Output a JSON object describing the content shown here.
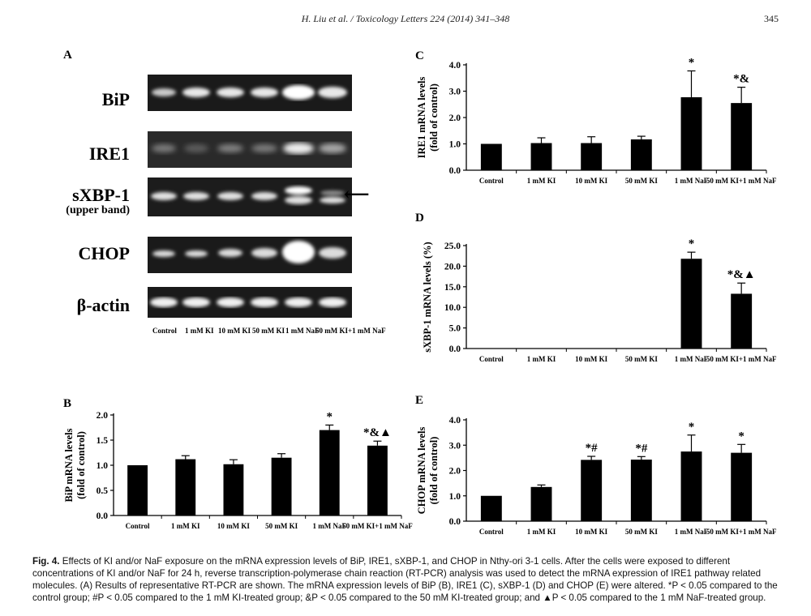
{
  "header": {
    "journal_ref": "H. Liu et al. / Toxicology Letters 224 (2014) 341–348",
    "page_number": "345"
  },
  "panel_a": {
    "letter": "A",
    "genes": [
      "BiP",
      "IRE1",
      "sXBP-1",
      "CHOP",
      "β-actin"
    ],
    "sxbp_subtitle": "(upper band)",
    "lanes": [
      "Control",
      "1 mM KI",
      "10 mM KI",
      "50 mM KI",
      "1 mM NaF",
      "50 mM KI+1 mM NaF"
    ],
    "arrow": "⟵"
  },
  "chart_data": [
    {
      "panel": "B",
      "type": "bar",
      "categories": [
        "Control",
        "1 mM KI",
        "10 mM KI",
        "50 mM KI",
        "1 mM NaF",
        "50 mM KI+1 mM NaF"
      ],
      "values": [
        1.0,
        1.12,
        1.02,
        1.15,
        1.7,
        1.39
      ],
      "errors": [
        0.0,
        0.07,
        0.09,
        0.08,
        0.1,
        0.09
      ],
      "annotations": [
        "",
        "",
        "",
        "",
        "*",
        "*&▲"
      ],
      "ylabel": "BiP mRNA levels (fold of control)",
      "ylabel_lines": [
        "BiP mRNA levels",
        "(fold of control)"
      ],
      "yticks": [
        "0.0",
        "0.5",
        "1.0",
        "1.5",
        "2.0"
      ],
      "ylim": [
        0,
        2.0
      ]
    },
    {
      "panel": "C",
      "type": "bar",
      "categories": [
        "Control",
        "1 mM KI",
        "10 mM KI",
        "50 mM KI",
        "1 mM NaF",
        "50 mM KI+1 mM NaF"
      ],
      "values": [
        1.0,
        1.03,
        1.03,
        1.17,
        2.77,
        2.55
      ],
      "errors": [
        0.0,
        0.2,
        0.24,
        0.12,
        1.0,
        0.6
      ],
      "annotations": [
        "",
        "",
        "",
        "",
        "*",
        "*&"
      ],
      "ylabel": "IRE1 mRNA levels (fold of control)",
      "ylabel_lines": [
        "IRE1 mRNA levels",
        "(fold of control)"
      ],
      "yticks": [
        "0.0",
        "1.0",
        "2.0",
        "3.0",
        "4.0"
      ],
      "ylim": [
        0,
        4.0
      ]
    },
    {
      "panel": "D",
      "type": "bar",
      "categories": [
        "Control",
        "1 mM KI",
        "10 mM KI",
        "50 mM KI",
        "1 mM NaF",
        "50 mM KI+1 mM NaF"
      ],
      "values": [
        0,
        0,
        0,
        0,
        21.8,
        13.3
      ],
      "errors": [
        0,
        0,
        0,
        0,
        1.6,
        2.6
      ],
      "annotations": [
        "",
        "",
        "",
        "",
        "*",
        "*&▲"
      ],
      "ylabel": "sXBP-1 mRNA levels (%)",
      "ylabel_lines": [
        "sXBP-1 mRNA levels (%)"
      ],
      "yticks": [
        "0.0",
        "5.0",
        "10.0",
        "15.0",
        "20.0",
        "25.0"
      ],
      "ylim": [
        0,
        25.0
      ]
    },
    {
      "panel": "E",
      "type": "bar",
      "categories": [
        "Control",
        "1 mM KI",
        "10 mM KI",
        "50 mM KI",
        "1 mM NaF",
        "50 mM KI+1 mM NaF"
      ],
      "values": [
        1.0,
        1.35,
        2.42,
        2.43,
        2.75,
        2.7
      ],
      "errors": [
        0.0,
        0.08,
        0.14,
        0.12,
        0.65,
        0.33
      ],
      "annotations": [
        "",
        "",
        "*#",
        "*#",
        "*",
        "*"
      ],
      "ylabel": "CHOP mRNA levels (fold of control)",
      "ylabel_lines": [
        "CHOP mRNA levels",
        "(fold of control)"
      ],
      "yticks": [
        "0.0",
        "1.0",
        "2.0",
        "3.0",
        "4.0"
      ],
      "ylim": [
        0,
        4.0
      ]
    }
  ],
  "caption": {
    "label": "Fig. 4.",
    "text": "Effects of KI and/or NaF exposure on the mRNA expression levels of BiP, IRE1, sXBP-1, and CHOP in Nthy-ori 3-1 cells. After the cells were exposed to different concentrations of KI and/or NaF for 24 h, reverse transcription-polymerase chain reaction (RT-PCR) analysis was used to detect the mRNA expression of IRE1 pathway related molecules. (A) Results of representative RT-PCR are shown. The mRNA expression levels of BiP (B), IRE1 (C), sXBP-1 (D) and CHOP (E) were altered. *P < 0.05 compared to the control group; #P < 0.05 compared to the 1 mM KI-treated group; &P < 0.05 compared to the 50 mM KI-treated group; and ▲P < 0.05 compared to the 1 mM NaF-treated group."
  }
}
